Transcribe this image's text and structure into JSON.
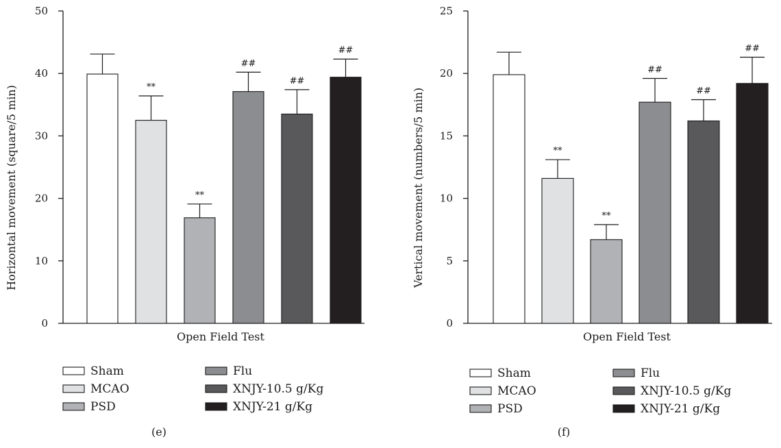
{
  "colors": {
    "bar_fills": [
      "#ffffff",
      "#e0e1e3",
      "#b1b2b5",
      "#8c8d90",
      "#59595b",
      "#231f20"
    ],
    "stroke": "#1a1a1a"
  },
  "legend": {
    "items": [
      {
        "label": "Sham",
        "color": "#ffffff"
      },
      {
        "label": "MCAO",
        "color": "#e0e1e3"
      },
      {
        "label": "PSD",
        "color": "#b1b2b5"
      },
      {
        "label": "Flu",
        "color": "#8c8d90"
      },
      {
        "label": "XNJY-10.5 g/Kg",
        "color": "#59595b"
      },
      {
        "label": "XNJY-21 g/Kg",
        "color": "#231f20"
      }
    ]
  },
  "chart_data": [
    {
      "type": "bar",
      "panel_label": "(e)",
      "xlabel": "Open Field Test",
      "ylabel": "Horizontal movement (square/5 min)",
      "ylim": [
        0,
        50
      ],
      "yticks": [
        0,
        10,
        20,
        30,
        40,
        50
      ],
      "categories": [
        "Sham",
        "MCAO",
        "PSD",
        "Flu",
        "XNJY-10.5 g/Kg",
        "XNJY-21 g/Kg"
      ],
      "values": [
        39.9,
        32.5,
        16.9,
        37.1,
        33.5,
        39.4
      ],
      "errors": [
        3.2,
        3.9,
        2.2,
        3.1,
        3.9,
        2.9
      ],
      "significance": [
        "",
        "**",
        "**",
        "##",
        "##",
        "##"
      ],
      "grid": false,
      "legend_position": "bottom"
    },
    {
      "type": "bar",
      "panel_label": "(f)",
      "xlabel": "Open Field Test",
      "ylabel": "Vertical movement (numbers/5 min)",
      "ylim": [
        0,
        25
      ],
      "yticks": [
        0,
        5,
        10,
        15,
        20,
        25
      ],
      "categories": [
        "Sham",
        "MCAO",
        "PSD",
        "Flu",
        "XNJY-10.5 g/Kg",
        "XNJY-21 g/Kg"
      ],
      "values": [
        19.9,
        11.6,
        6.7,
        17.7,
        16.2,
        19.2
      ],
      "errors": [
        1.8,
        1.5,
        1.2,
        1.9,
        1.7,
        2.1
      ],
      "significance": [
        "",
        "**",
        "**",
        "##",
        "##",
        "##"
      ],
      "grid": false,
      "legend_position": "bottom"
    }
  ]
}
